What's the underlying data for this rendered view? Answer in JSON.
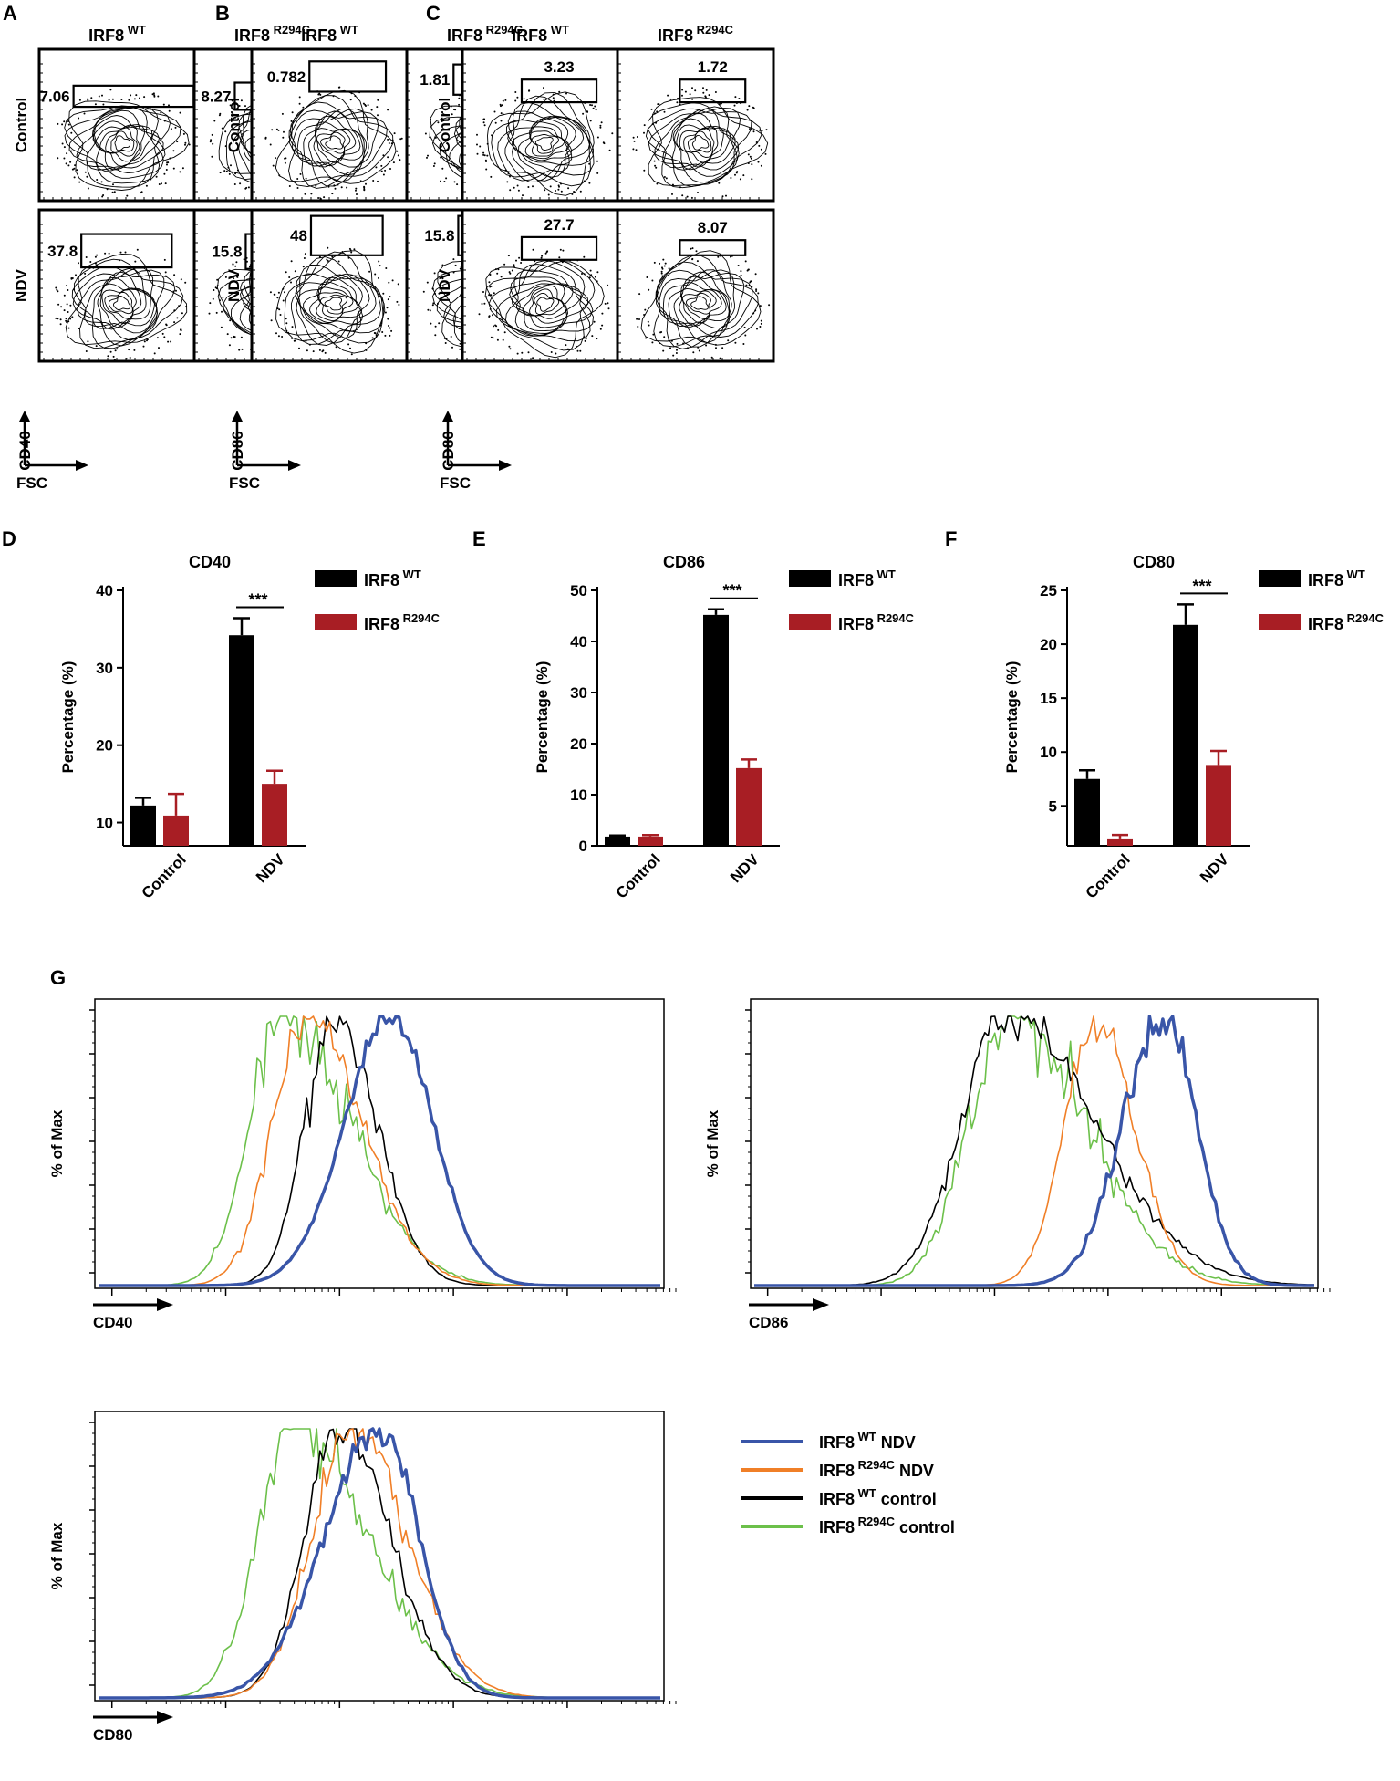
{
  "flow": {
    "col_titles": [
      {
        "base": "IRF8",
        "sup": "WT"
      },
      {
        "base": "IRF8",
        "sup": "R294C"
      }
    ],
    "row_labels": [
      "Control",
      "NDV"
    ],
    "x_label": "FSC",
    "panels": [
      {
        "letter": "A",
        "marker": "CD40",
        "values": [
          [
            "7.06",
            "8.27"
          ],
          [
            "37.8",
            "15.8"
          ]
        ]
      },
      {
        "letter": "B",
        "marker": "CD86",
        "values": [
          [
            "0.782",
            "1.81"
          ],
          [
            "48",
            "15.8"
          ]
        ]
      },
      {
        "letter": "C",
        "marker": "CD80",
        "values": [
          [
            "3.23",
            "1.72"
          ],
          [
            "27.7",
            "8.07"
          ]
        ]
      }
    ]
  },
  "chart_data": [
    {
      "type": "bar",
      "letter": "D",
      "title": "CD40",
      "categories": [
        "Control",
        "NDV"
      ],
      "ylabel": "Percentage (%)",
      "ylim": [
        7,
        40
      ],
      "yticks": [
        10,
        20,
        30,
        40
      ],
      "series": [
        {
          "name": "IRF8",
          "sup": "WT",
          "color": "#000000",
          "values": [
            12.2,
            34.2
          ],
          "errors": [
            1.0,
            2.2
          ]
        },
        {
          "name": "IRF8",
          "sup": "R294C",
          "color": "#a81e24",
          "values": [
            10.9,
            15.0
          ],
          "errors": [
            2.8,
            1.7
          ]
        }
      ],
      "significance": "***"
    },
    {
      "type": "bar",
      "letter": "E",
      "title": "CD86",
      "categories": [
        "Control",
        "NDV"
      ],
      "ylabel": "Percentage (%)",
      "ylim": [
        0,
        50
      ],
      "yticks": [
        0,
        10,
        20,
        30,
        40,
        50
      ],
      "series": [
        {
          "name": "IRF8",
          "sup": "WT",
          "color": "#000000",
          "values": [
            1.8,
            45.2
          ],
          "errors": [
            0.2,
            1.1
          ]
        },
        {
          "name": "IRF8",
          "sup": "R294C",
          "color": "#a81e24",
          "values": [
            1.8,
            15.2
          ],
          "errors": [
            0.3,
            1.7
          ]
        }
      ],
      "significance": "***"
    },
    {
      "type": "bar",
      "letter": "F",
      "title": "CD80",
      "categories": [
        "Control",
        "NDV"
      ],
      "ylabel": "Percentage (%)",
      "ylim": [
        1.3,
        25
      ],
      "yticks": [
        5,
        10,
        15,
        20,
        25
      ],
      "series": [
        {
          "name": "IRF8",
          "sup": "WT",
          "color": "#000000",
          "values": [
            7.5,
            21.8
          ],
          "errors": [
            0.8,
            1.9
          ]
        },
        {
          "name": "IRF8",
          "sup": "R294C",
          "color": "#a81e24",
          "values": [
            1.9,
            8.8
          ],
          "errors": [
            0.4,
            1.3
          ]
        }
      ],
      "significance": "***"
    },
    {
      "type": "line",
      "letter": "G",
      "ylabel": "% of Max",
      "legend": [
        {
          "name": "IRF8",
          "sup": "WT",
          "suffix": "NDV",
          "color": "#3955a8"
        },
        {
          "name": "IRF8",
          "sup": "R294C",
          "suffix": "NDV",
          "color": "#f07f27"
        },
        {
          "name": "IRF8",
          "sup": "WT",
          "suffix": "control",
          "color": "#000000"
        },
        {
          "name": "IRF8",
          "sup": "R294C",
          "suffix": "control",
          "color": "#6cc04a"
        }
      ],
      "histograms": [
        {
          "xlabel": "CD40",
          "series": [
            {
              "name": "IRF8 WT NDV",
              "color": "#3955a8",
              "peak": 0.52,
              "width": 0.075,
              "skew": 1.1,
              "noise": 0.02
            },
            {
              "name": "IRF8 R294C NDV",
              "color": "#f07f27",
              "peak": 0.37,
              "width": 0.1,
              "skew": 0.6,
              "noise": 0.05
            },
            {
              "name": "IRF8 WT control",
              "color": "#000000",
              "peak": 0.42,
              "width": 0.075,
              "skew": 0.7,
              "noise": 0.05
            },
            {
              "name": "IRF8 R294C control",
              "color": "#6cc04a",
              "peak": 0.33,
              "width": 0.12,
              "skew": 0.5,
              "noise": 0.07
            }
          ]
        },
        {
          "xlabel": "CD86",
          "series": [
            {
              "name": "IRF8 WT NDV",
              "color": "#3955a8",
              "peak": 0.73,
              "width": 0.06,
              "skew": 1.2,
              "noise": 0.05
            },
            {
              "name": "IRF8 R294C NDV",
              "color": "#f07f27",
              "peak": 0.61,
              "width": 0.07,
              "skew": 0.8,
              "noise": 0.04
            },
            {
              "name": "IRF8 WT control",
              "color": "#000000",
              "peak": 0.45,
              "width": 0.16,
              "skew": 0.5,
              "noise": 0.05
            },
            {
              "name": "IRF8 R294C control",
              "color": "#6cc04a",
              "peak": 0.45,
              "width": 0.14,
              "skew": 0.5,
              "noise": 0.09
            }
          ]
        },
        {
          "xlabel": "CD80",
          "series": [
            {
              "name": "IRF8 WT NDV",
              "color": "#3955a8",
              "peak": 0.5,
              "width": 0.07,
              "skew": 1.4,
              "noise": 0.03
            },
            {
              "name": "IRF8 R294C NDV",
              "color": "#f07f27",
              "peak": 0.45,
              "width": 0.1,
              "skew": 0.7,
              "noise": 0.05
            },
            {
              "name": "IRF8 WT control",
              "color": "#000000",
              "peak": 0.43,
              "width": 0.09,
              "skew": 0.7,
              "noise": 0.05
            },
            {
              "name": "IRF8 R294C control",
              "color": "#6cc04a",
              "peak": 0.35,
              "width": 0.13,
              "skew": 0.5,
              "noise": 0.07
            }
          ]
        }
      ]
    }
  ]
}
